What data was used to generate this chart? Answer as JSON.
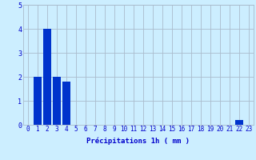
{
  "bar_values": [
    0,
    2.0,
    4.0,
    2.0,
    1.8,
    0,
    0,
    0,
    0,
    0,
    0,
    0,
    0,
    0,
    0,
    0,
    0,
    0,
    0,
    0,
    0,
    0,
    0.2,
    0
  ],
  "bar_color": "#0033cc",
  "bg_color": "#cceeff",
  "grid_color": "#aabbcc",
  "xlabel": "Précipitations 1h ( mm )",
  "xlabel_color": "#0000cc",
  "tick_color": "#0000cc",
  "ylim": [
    0,
    5
  ],
  "xlim_min": -0.5,
  "xlim_max": 23.5,
  "yticks": [
    0,
    1,
    2,
    3,
    4,
    5
  ],
  "xtick_labels": [
    "0",
    "1",
    "2",
    "3",
    "4",
    "5",
    "6",
    "7",
    "8",
    "9",
    "10",
    "11",
    "12",
    "13",
    "14",
    "15",
    "16",
    "17",
    "18",
    "19",
    "20",
    "21",
    "22",
    "23"
  ],
  "xlabel_fontsize": 6.5,
  "tick_fontsize": 5.5,
  "bar_width": 0.85
}
